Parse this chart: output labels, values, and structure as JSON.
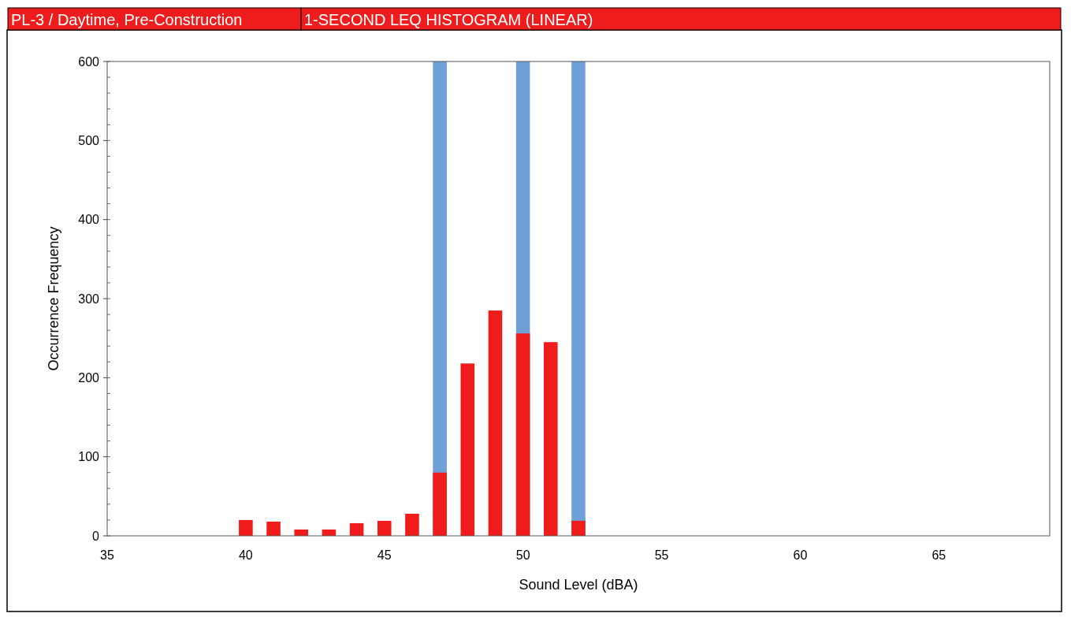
{
  "chart_data": {
    "type": "bar",
    "title": "PL-3 / Daytime, Pre-Construction",
    "subtitle": "1-SECOND LEQ HISTOGRAM (LINEAR)",
    "xlabel": "Sound Level (dBA)",
    "ylabel": "Occurrence Frequency",
    "series": [
      {
        "color": "#6fa0d8",
        "x": [
          47,
          50,
          52
        ],
        "values": [
          600,
          600,
          600
        ]
      },
      {
        "color": "#f01c1c",
        "x": [
          40,
          41,
          42,
          43,
          44,
          45,
          46,
          47,
          48,
          49,
          50,
          51,
          52
        ],
        "values": [
          20,
          18,
          8,
          8,
          16,
          19,
          28,
          80,
          218,
          285,
          256,
          245,
          19
        ]
      }
    ],
    "xlim": [
      35,
      69
    ],
    "xticks": [
      35,
      40,
      45,
      50,
      55,
      60,
      65
    ],
    "ylim": [
      0,
      600
    ],
    "yticks": [
      0,
      100,
      200,
      300,
      400,
      500,
      600
    ],
    "grid": false
  }
}
